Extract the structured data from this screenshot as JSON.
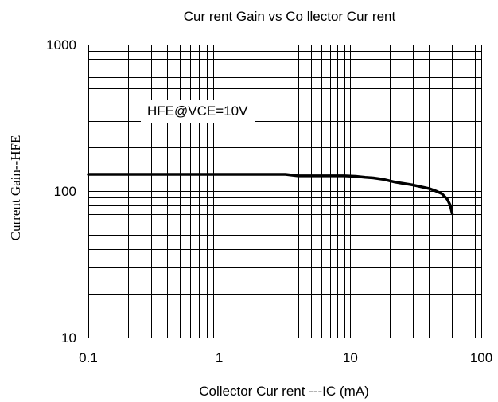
{
  "chart_data": {
    "type": "line",
    "title": "Cur rent Gain vs Co llector Cur rent",
    "xlabel": "Collector Cur rent ---IC (mA)",
    "ylabel": "Current Gain--HFE",
    "xscale": "log",
    "yscale": "log",
    "xlim": [
      0.1,
      100
    ],
    "ylim": [
      10,
      1000
    ],
    "xticks": [
      "0.1",
      "1",
      "10",
      "100"
    ],
    "yticks": [
      "10",
      "100",
      "1000"
    ],
    "grid": true,
    "annotation": "HFE@VCE=10V",
    "series": [
      {
        "x": [
          0.1,
          0.5,
          1,
          2,
          3.2,
          4,
          6,
          9,
          11,
          13,
          15,
          18,
          22,
          30,
          40,
          45,
          50,
          55,
          58,
          60
        ],
        "y": [
          130,
          130,
          130,
          130,
          130,
          127,
          127,
          127,
          126,
          124,
          123,
          120,
          115,
          110,
          104,
          100,
          96,
          88,
          80,
          70
        ]
      }
    ]
  }
}
